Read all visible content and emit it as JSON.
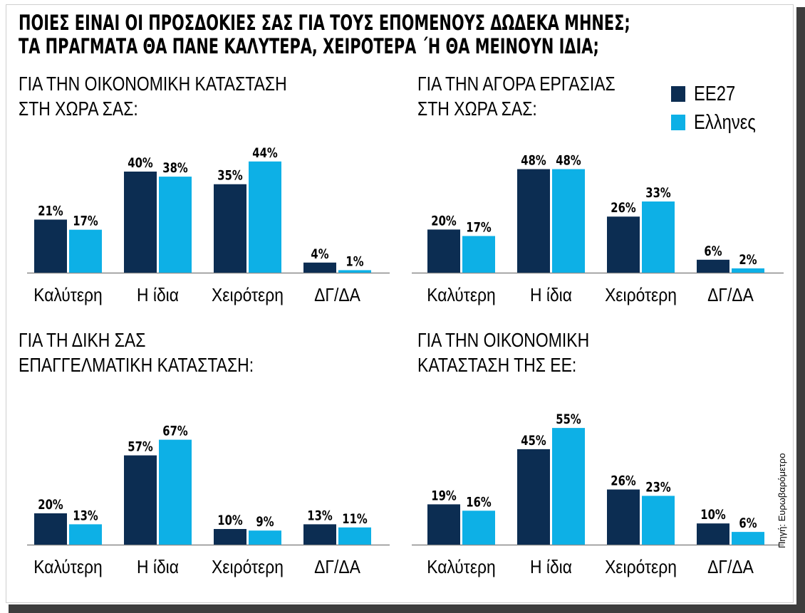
{
  "title": {
    "line1": "ΠΟΙΕΣ ΕΙΝΑΙ ΟΙ ΠΡΟΣΔΟΚΙΕΣ ΣΑΣ ΓΙΑ ΤΟΥΣ ΕΠΟΜΕΝΟΥΣ ΔΩΔΕΚΑ ΜΗΝΕΣ;",
    "line2": "ΤΑ ΠΡΑΓΜΑΤΑ ΘΑ ΠΑΝΕ ΚΑΛΥΤΕΡΑ, ΧΕΙΡΟΤΕΡΑ ΄Η ΘΑ ΜΕΙΝΟΥΝ ΙΔΙΑ;"
  },
  "legend": [
    {
      "label": "ΕΕ27",
      "color": "#0c2d52"
    },
    {
      "label": "Ελληνες",
      "color": "#0db0e6"
    }
  ],
  "source": "Πηγή: Ευρωβαρόμετρο",
  "chart_data": [
    {
      "type": "bar",
      "title_line1": "ΓΙΑ ΤΗΝ ΟΙΚΟΝΟΜΙΚΗ ΚΑΤΑΣΤΑΣΗ",
      "title_line2": "ΣΤΗ ΧΩΡΑ ΣΑΣ:",
      "categories": [
        "Καλύτερη",
        "Η ίδια",
        "Χειρότερη",
        "ΔΓ/ΔΑ"
      ],
      "series": [
        {
          "name": "ΕΕ27",
          "values": [
            21,
            40,
            35,
            4
          ]
        },
        {
          "name": "Ελληνες",
          "values": [
            17,
            38,
            44,
            1
          ]
        }
      ],
      "unit": "%"
    },
    {
      "type": "bar",
      "title_line1": "ΓΙΑ ΤΗΝ ΑΓΟΡΑ ΕΡΓΑΣΙΑΣ",
      "title_line2": "ΣΤΗ ΧΩΡΑ ΣΑΣ:",
      "categories": [
        "Καλύτερη",
        "Η ίδια",
        "Χειρότερη",
        "ΔΓ/ΔΑ"
      ],
      "series": [
        {
          "name": "ΕΕ27",
          "values": [
            20,
            48,
            26,
            6
          ]
        },
        {
          "name": "Ελληνες",
          "values": [
            17,
            48,
            33,
            2
          ]
        }
      ],
      "unit": "%"
    },
    {
      "type": "bar",
      "title_line1": "ΓΙΑ ΤΗ ΔΙΚΗ ΣΑΣ",
      "title_line2": "ΕΠΑΓΓΕΛΜΑΤΙΚΗ ΚΑΤΑΣΤΑΣΗ:",
      "categories": [
        "Καλύτερη",
        "Η ίδια",
        "Χειρότερη",
        "ΔΓ/ΔΑ"
      ],
      "series": [
        {
          "name": "ΕΕ27",
          "values": [
            20,
            57,
            10,
            13
          ]
        },
        {
          "name": "Ελληνες",
          "values": [
            13,
            67,
            9,
            11
          ]
        }
      ],
      "unit": "%"
    },
    {
      "type": "bar",
      "title_line1": "ΓΙΑ ΤΗΝ ΟΙΚΟΝΟΜΙΚΗ",
      "title_line2": "ΚΑΤΑΣΤΑΣΗ ΤΗΣ ΕΕ:",
      "categories": [
        "Καλύτερη",
        "Η ίδια",
        "Χειρότερη",
        "ΔΓ/ΔΑ"
      ],
      "series": [
        {
          "name": "ΕΕ27",
          "values": [
            19,
            45,
            26,
            10
          ]
        },
        {
          "name": "Ελληνες",
          "values": [
            16,
            55,
            23,
            6
          ]
        }
      ],
      "unit": "%"
    }
  ]
}
